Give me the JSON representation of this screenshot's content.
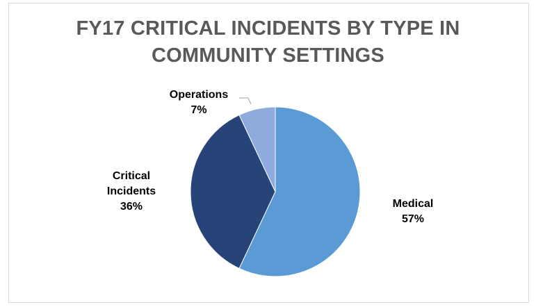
{
  "chart_data": {
    "type": "pie",
    "title_lines": [
      "FY17 CRITICAL INCIDENTS BY TYPE IN",
      "COMMUNITY SETTINGS"
    ],
    "slices": [
      {
        "name": "Medical",
        "value": 57,
        "label_lines": [
          "Medical",
          "57%"
        ],
        "color": "#5b9bd5"
      },
      {
        "name": "Critical Incidents",
        "value": 36,
        "label_lines": [
          "Critical",
          "Incidents",
          "36%"
        ],
        "color": "#264478"
      },
      {
        "name": "Operations",
        "value": 7,
        "label_lines": [
          "Operations",
          "7%"
        ],
        "color": "#8faadc"
      }
    ],
    "start_angle_deg": 0,
    "direction": "clockwise",
    "legend": "none",
    "data_labels": "outside"
  }
}
